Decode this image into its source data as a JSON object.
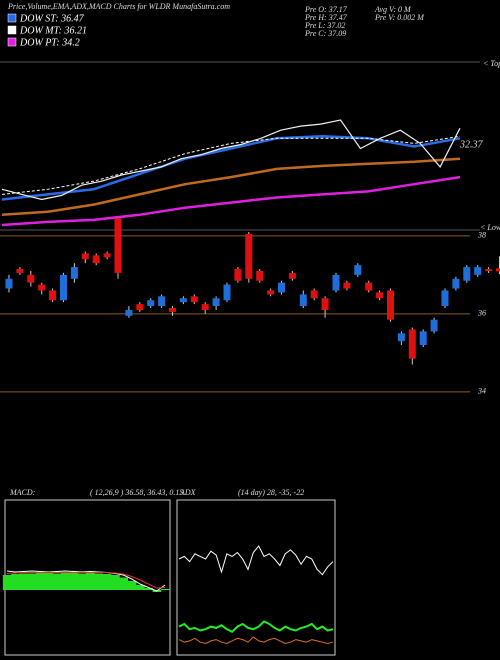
{
  "header": {
    "title": "Price,Volume,EMA,ADX,MACD Charts for WLDR MunafaSutra.com"
  },
  "chart_data": [
    {
      "type": "line",
      "info": [
        "Pre  O: 37.17",
        "Pre  H: 37.47",
        "Pre  L: 37.02",
        "Pre  C: 37.09",
        "Avg V: 0  M",
        "Pre  V: 0.002  M"
      ],
      "annotations": [
        "< Top",
        "< Lower",
        "32.37"
      ],
      "series": [
        {
          "name": "DOW ST: 36.47",
          "color": "#2a6ce8",
          "values": [
            33,
            33.5,
            34,
            35.5,
            37,
            38,
            39,
            39.2,
            39,
            38.2,
            39
          ]
        },
        {
          "name": "DOW MT: 36.21",
          "color": "#ffffff",
          "values": [
            33.5,
            34,
            34.8,
            36,
            37.5,
            38.5,
            39,
            39,
            39,
            38.5,
            39.2
          ]
        },
        {
          "name": "DOW PT: 34.2",
          "color": "#e020e0",
          "values": [
            30.5,
            30.8,
            31,
            31.5,
            32.2,
            32.7,
            33.2,
            33.5,
            33.8,
            34.5,
            35.2
          ]
        },
        {
          "color": "#c06a20",
          "values": [
            31.5,
            31.8,
            32.5,
            33.5,
            34.5,
            35.2,
            36,
            36.3,
            36.5,
            36.7,
            37
          ]
        },
        {
          "color": "#f0f0f0",
          "values": [
            34,
            33.5,
            33,
            33.4,
            34.4,
            34.8,
            35.4,
            35.8,
            36.2,
            37,
            37.4,
            38,
            38.4,
            39,
            39.8,
            40.2,
            40.4,
            40.8,
            38,
            39,
            39.8,
            38.5,
            36.2,
            40
          ]
        }
      ]
    },
    {
      "type": "candlestick",
      "ylim": [
        32.2,
        38.1
      ],
      "yticks": [
        38,
        36,
        34
      ],
      "grid": true,
      "up_color": "#1e6fd9",
      "down_color": "#e01010",
      "open": [
        36.65,
        37.15,
        37.0,
        36.75,
        36.6,
        36.35,
        36.9,
        37.55,
        37.5,
        37.55,
        38.45,
        35.95,
        36.25,
        36.2,
        36.2,
        36.15,
        36.3,
        36.45,
        36.25,
        36.2,
        36.35,
        37.15,
        38.05,
        37.1,
        36.6,
        36.55,
        37.05,
        36.2,
        36.6,
        36.4,
        36.6,
        36.8,
        37.0,
        36.8,
        36.55,
        36.6,
        35.3,
        35.6,
        35.2,
        35.55,
        36.2,
        36.65,
        36.85,
        37.0,
        37.15,
        37.17
      ],
      "high": [
        37.0,
        37.2,
        37.1,
        36.8,
        36.65,
        37.05,
        37.3,
        37.6,
        37.55,
        37.6,
        38.45,
        36.2,
        36.3,
        36.4,
        36.5,
        36.2,
        36.45,
        36.5,
        36.3,
        36.45,
        36.8,
        37.2,
        38.1,
        37.15,
        36.65,
        36.85,
        37.1,
        36.6,
        36.65,
        36.45,
        37.05,
        36.85,
        37.3,
        36.85,
        36.6,
        36.65,
        35.55,
        35.65,
        35.6,
        35.9,
        36.65,
        36.95,
        37.25,
        37.25,
        37.2,
        37.47
      ],
      "low": [
        36.55,
        37.0,
        36.7,
        36.5,
        36.3,
        36.3,
        36.8,
        37.3,
        37.25,
        37.4,
        36.9,
        35.9,
        36.05,
        36.15,
        36.15,
        35.95,
        36.25,
        36.25,
        36.0,
        36.1,
        36.3,
        36.8,
        36.8,
        36.8,
        36.45,
        36.5,
        36.85,
        36.15,
        36.35,
        35.9,
        36.55,
        36.6,
        36.95,
        36.55,
        36.35,
        35.8,
        35.2,
        34.7,
        35.15,
        35.5,
        36.15,
        36.6,
        36.8,
        36.95,
        37.05,
        37.02
      ],
      "close": [
        36.9,
        37.05,
        36.8,
        36.6,
        36.35,
        37.0,
        37.2,
        37.4,
        37.3,
        37.45,
        37.05,
        36.1,
        36.1,
        36.35,
        36.45,
        36.05,
        36.4,
        36.3,
        36.1,
        36.4,
        36.75,
        36.85,
        36.9,
        36.85,
        36.5,
        36.8,
        36.9,
        36.5,
        36.4,
        36.1,
        37.0,
        36.65,
        37.25,
        36.6,
        36.4,
        35.85,
        35.5,
        34.85,
        35.55,
        35.85,
        36.6,
        36.9,
        37.2,
        37.2,
        37.1,
        37.09
      ]
    },
    {
      "type": "macd",
      "title": "MACD:",
      "subtitle": "( 12,26,9 ) 36.58, 36.43, 0.15",
      "hist_color": "#22dd22",
      "histogram": [
        0.3,
        0.32,
        0.33,
        0.33,
        0.34,
        0.34,
        0.33,
        0.34,
        0.34,
        0.33,
        0.34,
        0.33,
        0.32,
        0.3,
        0.25,
        0.18,
        0.1,
        0.04,
        -0.04,
        0.02
      ],
      "series": [
        {
          "color": "#ffffff",
          "values": [
            0.38,
            0.36,
            0.37,
            0.38,
            0.37,
            0.36,
            0.37,
            0.38,
            0.37,
            0.36,
            0.37,
            0.36,
            0.35,
            0.33,
            0.3,
            0.22,
            0.12,
            0.05,
            -0.02,
            0.1
          ]
        },
        {
          "color": "#e03030",
          "values": [
            0.33,
            0.34,
            0.35,
            0.35,
            0.35,
            0.35,
            0.35,
            0.35,
            0.35,
            0.35,
            0.35,
            0.35,
            0.35,
            0.34,
            0.32,
            0.27,
            0.2,
            0.12,
            0.04,
            0.05
          ]
        }
      ]
    },
    {
      "type": "adx",
      "title": "ADX",
      "subtitle": "(14 day) 28, -35, -22",
      "series": [
        {
          "color": "#ffffff",
          "values": [
            70,
            72,
            68,
            74,
            72,
            70,
            76,
            73,
            60,
            74,
            72,
            75,
            70,
            62,
            75,
            80,
            72,
            74,
            70,
            65,
            74,
            77,
            73,
            66,
            72,
            70,
            62,
            58,
            64,
            68
          ]
        },
        {
          "color": "#22ee22",
          "values": [
            18,
            20,
            16,
            17,
            15,
            16,
            18,
            17,
            19,
            16,
            14,
            18,
            20,
            17,
            16,
            18,
            22,
            20,
            17,
            15,
            18,
            16,
            15,
            17,
            18,
            20,
            16,
            18,
            15,
            16
          ]
        },
        {
          "color": "#e07020",
          "values": [
            8,
            6,
            7,
            9,
            6,
            5,
            7,
            8,
            6,
            5,
            7,
            9,
            8,
            6,
            10,
            7,
            6,
            8,
            9,
            7,
            5,
            6,
            8,
            7,
            6,
            8,
            7,
            6,
            5,
            6
          ]
        }
      ]
    }
  ]
}
